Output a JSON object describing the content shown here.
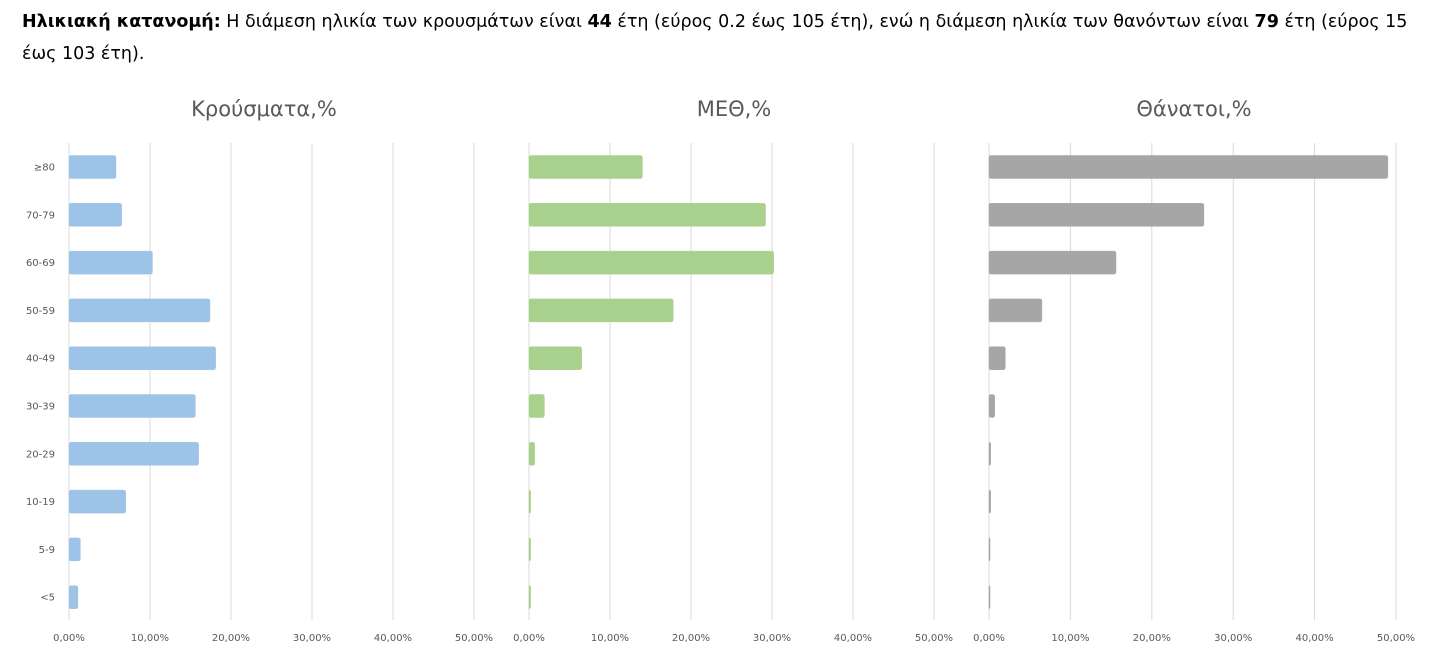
{
  "header": {
    "label": "Ηλικιακή κατανομή",
    "colon": ":",
    "part1": " Η διάμεση ηλικία των κρουσμάτων είναι ",
    "cases_median": "44",
    "part2": " έτη (εύρος 0.2 έως 105 έτη), ενώ η διάμεση ηλικία των θανόντων είναι ",
    "deaths_median": "79",
    "part3": " έτη (εύρος 15 έως 103 έτη)."
  },
  "chart_data": [
    {
      "type": "bar",
      "orientation": "horizontal",
      "title": "Κρούσματα,%",
      "categories": [
        "≥80",
        "70-79",
        "60-69",
        "50-59",
        "40-49",
        "30-39",
        "20-29",
        "10-19",
        "5-9",
        "<5"
      ],
      "values": [
        5.8,
        6.5,
        10.3,
        17.4,
        18.1,
        15.6,
        16.0,
        7.0,
        1.4,
        1.1
      ],
      "xlim": [
        0,
        50
      ],
      "x_ticks": [
        "0,00%",
        "10,00%",
        "20,00%",
        "30,00%",
        "40,00%",
        "50,00%"
      ],
      "color": "#9dc3e6",
      "grid": true
    },
    {
      "type": "bar",
      "orientation": "horizontal",
      "title": "ΜΕΘ,%",
      "categories": [
        "≥80",
        "70-79",
        "60-69",
        "50-59",
        "40-49",
        "30-39",
        "20-29",
        "10-19",
        "5-9",
        "<5"
      ],
      "values": [
        14.0,
        29.2,
        30.2,
        17.8,
        6.5,
        1.9,
        0.7,
        0.2,
        0.2,
        0.2
      ],
      "xlim": [
        0,
        50
      ],
      "x_ticks": [
        "0,00%",
        "10,00%",
        "20,00%",
        "30,00%",
        "40,00%",
        "50,00%"
      ],
      "color": "#a9d18e",
      "grid": true
    },
    {
      "type": "bar",
      "orientation": "horizontal",
      "title": "Θάνατοι,%",
      "categories": [
        "≥80",
        "70-79",
        "60-69",
        "50-59",
        "40-49",
        "30-39",
        "20-29",
        "10-19",
        "5-9",
        "<5"
      ],
      "values": [
        49.0,
        26.4,
        15.6,
        6.5,
        2.0,
        0.7,
        0.2,
        0.2,
        0,
        0
      ],
      "xlim": [
        0,
        50
      ],
      "x_ticks": [
        "0,00%",
        "10,00%",
        "20,00%",
        "30,00%",
        "40,00%",
        "50,00%"
      ],
      "color": "#a6a6a6",
      "grid": true
    }
  ]
}
